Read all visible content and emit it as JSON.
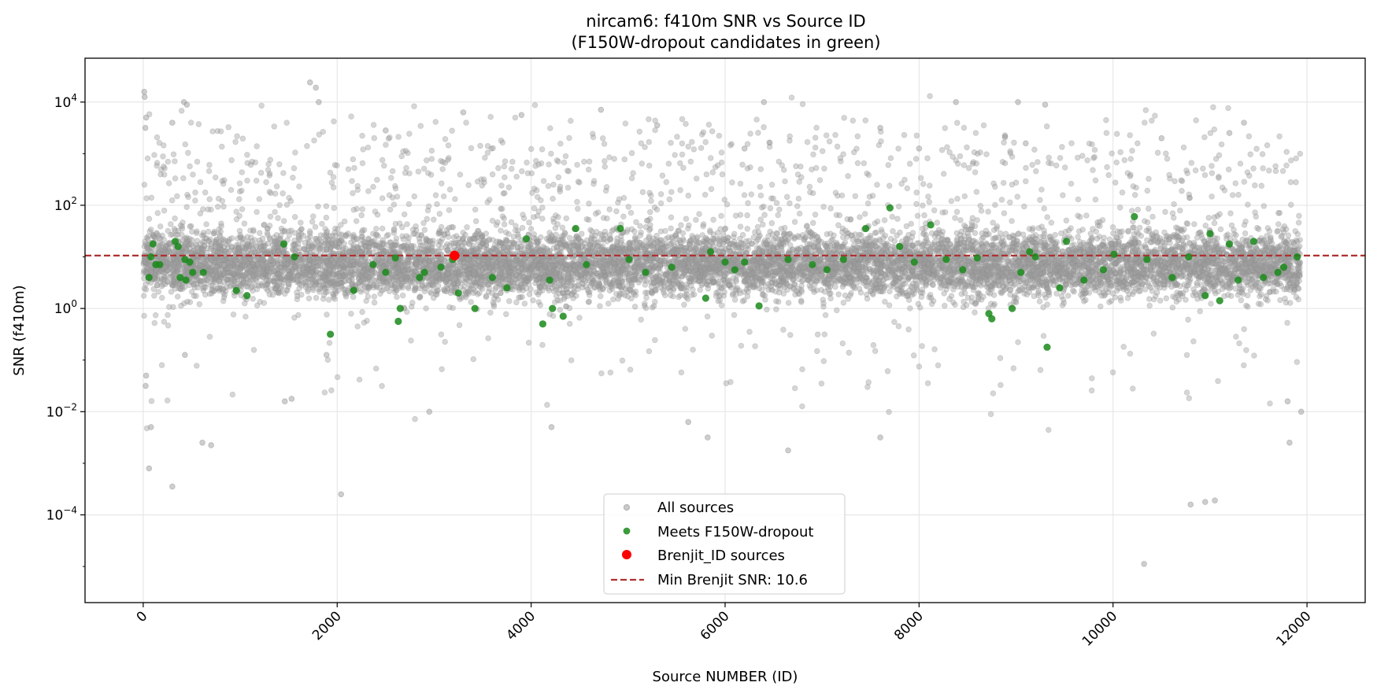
{
  "chart_data": {
    "type": "scatter",
    "title": "nircam6: f410m SNR vs Source ID",
    "subtitle": "(F150W-dropout candidates in green)",
    "xlabel": "Source NUMBER (ID)",
    "ylabel": "SNR (f410m)",
    "xlim": [
      -600,
      12600
    ],
    "ylim_log10": [
      -5.7,
      4.85
    ],
    "y_scale": "log",
    "grid": true,
    "legend_position": "bottom-center",
    "x_ticks": [
      0,
      2000,
      4000,
      6000,
      8000,
      10000,
      12000
    ],
    "x_tick_labels": [
      "0",
      "2000",
      "4000",
      "6000",
      "8000",
      "10000",
      "12000"
    ],
    "y_tick_exponents": [
      4,
      2,
      0,
      -2,
      -4
    ],
    "y_tick_base": "10",
    "y_tick_exponent_labels": [
      "4",
      "2",
      "0",
      "−2",
      "−4"
    ],
    "threshold_snr": 10.6,
    "background_population": {
      "id_min": 1,
      "id_max": 11930,
      "count": 11000,
      "log10_snr_center": 0.85,
      "log10_snr_spread": 0.55,
      "note_visible": false
    },
    "series": [
      {
        "name": "All sources",
        "color": "#9e9e9e",
        "marker": "circle-small",
        "points": [
          [
            10,
            4.2
          ],
          [
            15,
            4.1
          ],
          [
            22,
            3.5
          ],
          [
            30,
            3.7
          ],
          [
            300,
            -3.45
          ],
          [
            420,
            4.0
          ],
          [
            450,
            3.95
          ],
          [
            1720,
            4.38
          ],
          [
            1780,
            4.28
          ],
          [
            1810,
            4.0
          ],
          [
            2040,
            -3.6
          ],
          [
            3900,
            3.75
          ],
          [
            4720,
            3.85
          ],
          [
            5820,
            -2.5
          ],
          [
            6400,
            4.0
          ],
          [
            6650,
            -2.75
          ],
          [
            8380,
            4.0
          ],
          [
            9020,
            4.0
          ],
          [
            9300,
            3.95
          ],
          [
            10320,
            -4.95
          ],
          [
            10800,
            -3.8
          ],
          [
            10950,
            -3.75
          ],
          [
            11050,
            -3.72
          ],
          [
            11350,
            3.6
          ],
          [
            60,
            -3.1
          ],
          [
            610,
            -2.6
          ],
          [
            700,
            -2.65
          ],
          [
            7600,
            -2.5
          ],
          [
            1890,
            -0.9
          ],
          [
            2950,
            -2.0
          ],
          [
            5620,
            -2.2
          ],
          [
            4210,
            -2.3
          ],
          [
            11820,
            -2.6
          ],
          [
            11940,
            -2.0
          ],
          [
            11800,
            -1.8
          ],
          [
            30,
            -1.3
          ],
          [
            25,
            -1.5
          ],
          [
            80,
            -2.3
          ],
          [
            430,
            -0.9
          ],
          [
            1460,
            -1.8
          ],
          [
            1530,
            -1.75
          ],
          [
            9100,
            3.2
          ],
          [
            8000,
            3.1
          ],
          [
            7600,
            3.5
          ],
          [
            6200,
            3.1
          ],
          [
            3300,
            3.8
          ],
          [
            2500,
            3.45
          ],
          [
            300,
            3.6
          ],
          [
            5300,
            3.55
          ],
          [
            10500,
            3.3
          ],
          [
            11200,
            3.4
          ]
        ]
      },
      {
        "name": "Meets F150W-dropout",
        "color": "#1a8a1a",
        "marker": "circle-medium",
        "points": [
          [
            60,
            0.6
          ],
          [
            80,
            1.0
          ],
          [
            100,
            1.25
          ],
          [
            130,
            0.85
          ],
          [
            170,
            0.85
          ],
          [
            330,
            1.3
          ],
          [
            360,
            1.2
          ],
          [
            380,
            0.6
          ],
          [
            430,
            0.95
          ],
          [
            440,
            0.55
          ],
          [
            480,
            0.9
          ],
          [
            510,
            0.7
          ],
          [
            620,
            0.7
          ],
          [
            960,
            0.35
          ],
          [
            1070,
            0.25
          ],
          [
            1450,
            1.25
          ],
          [
            1560,
            1.0
          ],
          [
            1930,
            -0.5
          ],
          [
            2170,
            0.35
          ],
          [
            2370,
            0.85
          ],
          [
            2500,
            0.7
          ],
          [
            2600,
            0.98
          ],
          [
            2650,
            0.0
          ],
          [
            2630,
            -0.25
          ],
          [
            2850,
            0.6
          ],
          [
            2900,
            0.7
          ],
          [
            3070,
            0.8
          ],
          [
            3190,
            0.95
          ],
          [
            3250,
            0.3
          ],
          [
            3420,
            0.0
          ],
          [
            3600,
            0.6
          ],
          [
            3750,
            0.4
          ],
          [
            3950,
            1.35
          ],
          [
            4120,
            -0.3
          ],
          [
            4190,
            0.55
          ],
          [
            4220,
            0.0
          ],
          [
            4330,
            -0.15
          ],
          [
            4460,
            1.55
          ],
          [
            4570,
            0.85
          ],
          [
            4920,
            1.55
          ],
          [
            5010,
            0.95
          ],
          [
            5180,
            0.7
          ],
          [
            5450,
            0.8
          ],
          [
            5800,
            0.2
          ],
          [
            5850,
            1.1
          ],
          [
            6000,
            0.9
          ],
          [
            6100,
            0.75
          ],
          [
            6200,
            0.9
          ],
          [
            6350,
            0.05
          ],
          [
            6650,
            0.95
          ],
          [
            6900,
            0.85
          ],
          [
            7050,
            0.75
          ],
          [
            7220,
            0.95
          ],
          [
            7450,
            1.55
          ],
          [
            7700,
            1.95
          ],
          [
            7800,
            1.2
          ],
          [
            7950,
            0.9
          ],
          [
            8120,
            1.62
          ],
          [
            8280,
            0.95
          ],
          [
            8450,
            0.75
          ],
          [
            8600,
            0.98
          ],
          [
            8720,
            -0.1
          ],
          [
            8750,
            -0.2
          ],
          [
            8960,
            0.0
          ],
          [
            9050,
            0.7
          ],
          [
            9140,
            1.1
          ],
          [
            9200,
            1.0
          ],
          [
            9320,
            -0.75
          ],
          [
            9450,
            0.4
          ],
          [
            9520,
            1.3
          ],
          [
            9700,
            0.55
          ],
          [
            9900,
            0.75
          ],
          [
            10010,
            1.05
          ],
          [
            10220,
            1.78
          ],
          [
            10350,
            0.95
          ],
          [
            10610,
            0.6
          ],
          [
            10780,
            1.0
          ],
          [
            10950,
            0.25
          ],
          [
            11000,
            1.45
          ],
          [
            11100,
            0.15
          ],
          [
            11200,
            1.25
          ],
          [
            11290,
            0.55
          ],
          [
            11450,
            1.3
          ],
          [
            11550,
            0.6
          ],
          [
            11700,
            0.7
          ],
          [
            11760,
            0.8
          ],
          [
            11900,
            1.0
          ]
        ]
      },
      {
        "name": "Brenjit_ID sources",
        "color": "#ff0000",
        "marker": "circle-large",
        "points": [
          [
            3210,
            1.0253
          ]
        ]
      },
      {
        "name": "Min Brenjit SNR: 10.6",
        "color": "#b03030",
        "marker": "dashed-line",
        "value": 10.6
      }
    ]
  }
}
